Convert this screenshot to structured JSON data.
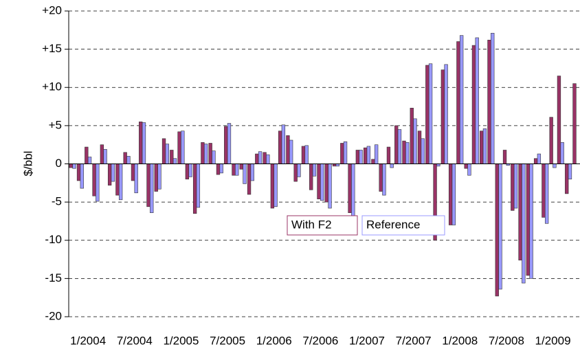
{
  "chart_data": {
    "type": "bar",
    "y_label": "$/bbl",
    "categories": [
      null,
      null,
      "1/2004",
      null,
      null,
      null,
      null,
      null,
      "7/2004",
      null,
      null,
      null,
      null,
      null,
      "1/2005",
      null,
      null,
      null,
      null,
      null,
      "7/2005",
      null,
      null,
      null,
      null,
      null,
      "1/2006",
      null,
      null,
      null,
      null,
      null,
      "7/2006",
      null,
      null,
      null,
      null,
      null,
      "1/2007",
      null,
      null,
      null,
      null,
      null,
      "7/2007",
      null,
      null,
      null,
      null,
      null,
      "1/2008",
      null,
      null,
      null,
      null,
      null,
      "7/2008",
      null,
      null,
      null,
      null,
      null,
      "1/2009",
      null,
      null,
      null
    ],
    "series": [
      {
        "name": "With F2",
        "color": "#993366",
        "values": [
          -0.5,
          -2.2,
          2.2,
          -4.2,
          2.5,
          -2.8,
          -4.1,
          1.5,
          -2.2,
          5.5,
          -5.6,
          -3.6,
          3.3,
          1.8,
          4.2,
          -2.0,
          -6.5,
          2.8,
          2.7,
          -1.4,
          4.9,
          -1.5,
          -0.7,
          -4.0,
          1.3,
          1.5,
          -5.8,
          4.3,
          3.7,
          -2.3,
          2.3,
          -3.4,
          -4.6,
          -5.0,
          -0.3,
          2.7,
          -6.4,
          1.8,
          2.1,
          0.6,
          -3.6,
          2.2,
          5.0,
          3.0,
          7.3,
          4.3,
          12.9,
          -10.0,
          12.3,
          -8.0,
          16.0,
          -0.6,
          15.5,
          4.3,
          16.2,
          -17.3,
          1.8,
          -6.1,
          -12.6,
          -14.6,
          0.7,
          -7.0,
          6.1,
          11.5,
          -3.9,
          10.5
        ]
      },
      {
        "name": "Reference",
        "color": "#9999ff",
        "values": [
          -0.6,
          -3.2,
          0.9,
          -4.9,
          1.9,
          -2.3,
          -4.7,
          1.0,
          -3.8,
          5.4,
          -6.4,
          -3.3,
          2.6,
          0.7,
          4.3,
          -1.7,
          -5.7,
          2.6,
          1.7,
          -1.2,
          5.3,
          -1.5,
          -2.6,
          -2.2,
          1.6,
          1.2,
          -5.6,
          5.1,
          3.1,
          -1.7,
          2.4,
          -1.6,
          -4.8,
          -5.8,
          -0.3,
          2.9,
          -8.0,
          1.8,
          2.3,
          2.5,
          -4.1,
          -0.5,
          4.5,
          2.8,
          5.9,
          3.3,
          13.1,
          -0.3,
          13.0,
          -8.0,
          16.8,
          -1.5,
          16.5,
          4.6,
          17.1,
          -16.4,
          -0.2,
          -5.8,
          -15.6,
          -15.0,
          1.3,
          -7.8,
          -0.5,
          2.8,
          -2.0,
          null
        ]
      }
    ],
    "ylim": [
      -20,
      20
    ],
    "yticks": [
      {
        "value": -20,
        "label": "-20"
      },
      {
        "value": -15,
        "label": "-15"
      },
      {
        "value": -10,
        "label": "-10"
      },
      {
        "value": -5,
        "label": "-5"
      },
      0,
      {
        "value": 5,
        "label": "+5"
      },
      {
        "value": 10,
        "label": "+10"
      },
      {
        "value": 15,
        "label": "+15"
      },
      {
        "value": 20,
        "label": "+20"
      }
    ],
    "grid": true,
    "legend": "center"
  }
}
